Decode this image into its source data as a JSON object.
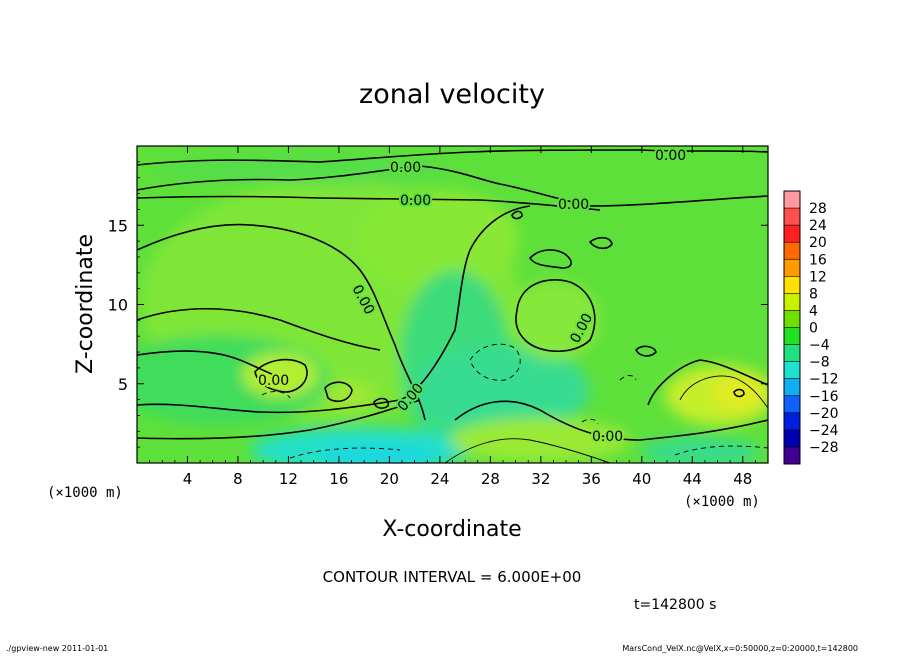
{
  "chart_data": {
    "type": "heatmap",
    "title": "zonal velocity",
    "xlabel": "X-coordinate",
    "ylabel": "Z-coordinate",
    "x_unit_left": "(×1000 m)",
    "x_unit_right": "(×1000 m)",
    "xlim": [
      0,
      50
    ],
    "ylim": [
      0,
      20
    ],
    "x_ticks": [
      4,
      8,
      12,
      16,
      20,
      24,
      28,
      32,
      36,
      40,
      44,
      48
    ],
    "y_ticks": [
      5,
      10,
      15
    ],
    "colorbar": {
      "labels": [
        "28",
        "24",
        "20",
        "16",
        "12",
        "8",
        "4",
        "0",
        "−4",
        "−8",
        "−12",
        "−16",
        "−20",
        "−24",
        "−28"
      ],
      "colors": [
        "#ff9aa0",
        "#ff5050",
        "#ff2020",
        "#ff6a00",
        "#ff9a00",
        "#ffe000",
        "#c8f000",
        "#70e000",
        "#20e020",
        "#20e080",
        "#20e0d0",
        "#10b0f0",
        "#1060ff",
        "#0020e0",
        "#0000b0",
        "#400090"
      ],
      "range": [
        -32,
        32
      ]
    },
    "contour_labels": [
      "0.00",
      "0.00",
      "0.00",
      "0.00",
      "0.00",
      "0.00",
      "0.00",
      "0.00",
      "0.00"
    ],
    "contour_interval": "CONTOUR INTERVAL = 6.000E+00",
    "time": "t=142800 s"
  },
  "footer": {
    "program": "./gpview-new  2011-01-01",
    "source": "MarsCond_VelX.nc@VelX,x=0:50000,z=0:20000,t=142800"
  }
}
